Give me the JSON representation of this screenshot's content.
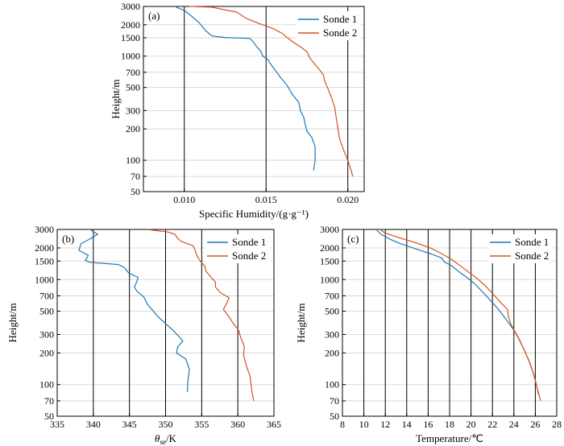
{
  "chart_data": [
    {
      "type": "line",
      "panel_label": "(a)",
      "xlabel": "Specific Humidity/(g·g⁻¹)",
      "ylabel": "Height/m",
      "xlim": [
        0.0075,
        0.021
      ],
      "ylim": [
        50,
        3000
      ],
      "yscale": "log",
      "xticks": [
        0.01,
        0.015,
        0.02
      ],
      "xtick_labels": [
        "0.010",
        "0.015",
        "0.020"
      ],
      "yticks": [
        50,
        70,
        100,
        200,
        300,
        500,
        700,
        1000,
        1500,
        2000,
        3000
      ],
      "vlines": [
        0.01,
        0.015,
        0.02
      ],
      "legend_position": "top-right",
      "series": [
        {
          "name": "Sonde 1",
          "color": "#1f77b4",
          "points": [
            [
              0.0179,
              80
            ],
            [
              0.018,
              100
            ],
            [
              0.018,
              135
            ],
            [
              0.0178,
              165
            ],
            [
              0.0175,
              190
            ],
            [
              0.0174,
              220
            ],
            [
              0.0173,
              260
            ],
            [
              0.0171,
              300
            ],
            [
              0.017,
              360
            ],
            [
              0.0166,
              430
            ],
            [
              0.0163,
              520
            ],
            [
              0.0159,
              620
            ],
            [
              0.0156,
              720
            ],
            [
              0.0153,
              830
            ],
            [
              0.0151,
              930
            ],
            [
              0.0148,
              1000
            ],
            [
              0.0147,
              1100
            ],
            [
              0.0144,
              1250
            ],
            [
              0.0142,
              1380
            ],
            [
              0.014,
              1480
            ],
            [
              0.0125,
              1510
            ],
            [
              0.0117,
              1560
            ],
            [
              0.0113,
              1760
            ],
            [
              0.0109,
              2100
            ],
            [
              0.0104,
              2450
            ],
            [
              0.01,
              2750
            ],
            [
              0.0095,
              2950
            ]
          ]
        },
        {
          "name": "Sonde 2",
          "color": "#d2541e",
          "points": [
            [
              0.0203,
              70
            ],
            [
              0.0202,
              80
            ],
            [
              0.02,
              100
            ],
            [
              0.0197,
              130
            ],
            [
              0.0195,
              160
            ],
            [
              0.0194,
              200
            ],
            [
              0.0193,
              250
            ],
            [
              0.0192,
              320
            ],
            [
              0.019,
              400
            ],
            [
              0.0188,
              480
            ],
            [
              0.0186,
              570
            ],
            [
              0.0185,
              660
            ],
            [
              0.0183,
              730
            ],
            [
              0.018,
              830
            ],
            [
              0.0177,
              950
            ],
            [
              0.0175,
              1100
            ],
            [
              0.0172,
              1200
            ],
            [
              0.0167,
              1350
            ],
            [
              0.0163,
              1500
            ],
            [
              0.016,
              1650
            ],
            [
              0.0154,
              1850
            ],
            [
              0.0146,
              2050
            ],
            [
              0.0138,
              2300
            ],
            [
              0.0132,
              2650
            ],
            [
              0.0124,
              2800
            ],
            [
              0.0117,
              2950
            ],
            [
              0.0103,
              3000
            ]
          ]
        }
      ]
    },
    {
      "type": "line",
      "panel_label": "(b)",
      "xlabel_main": "θ",
      "xlabel_sub": "se",
      "xlabel_unit": "/K",
      "ylabel": "Height/m",
      "xlim": [
        335,
        365
      ],
      "ylim": [
        50,
        3000
      ],
      "yscale": "log",
      "xticks": [
        335,
        340,
        345,
        350,
        355,
        360,
        365
      ],
      "xtick_labels": [
        "335",
        "340",
        "345",
        "350",
        "355",
        "360",
        "365"
      ],
      "yticks": [
        50,
        70,
        100,
        200,
        300,
        500,
        700,
        1000,
        1500,
        2000,
        3000
      ],
      "vlines": [
        340,
        345,
        350,
        355,
        360
      ],
      "legend_position": "top-right",
      "series": [
        {
          "name": "Sonde 1",
          "color": "#1f77b4",
          "points": [
            [
              353.0,
              85
            ],
            [
              353.1,
              110
            ],
            [
              353.3,
              140
            ],
            [
              352.8,
              175
            ],
            [
              351.5,
              200
            ],
            [
              351.7,
              230
            ],
            [
              352.4,
              260
            ],
            [
              351.8,
              290
            ],
            [
              351.0,
              330
            ],
            [
              350.0,
              380
            ],
            [
              349.0,
              440
            ],
            [
              348.3,
              500
            ],
            [
              347.5,
              580
            ],
            [
              347.0,
              680
            ],
            [
              346.0,
              780
            ],
            [
              345.7,
              850
            ],
            [
              346.0,
              950
            ],
            [
              346.2,
              1050
            ],
            [
              344.9,
              1150
            ],
            [
              344.3,
              1300
            ],
            [
              343.5,
              1390
            ],
            [
              339.5,
              1460
            ],
            [
              338.9,
              1530
            ],
            [
              339.3,
              1700
            ],
            [
              338.0,
              1900
            ],
            [
              338.3,
              2200
            ],
            [
              339.6,
              2450
            ],
            [
              340.6,
              2700
            ],
            [
              339.7,
              2950
            ]
          ]
        },
        {
          "name": "Sonde 2",
          "color": "#d2541e",
          "points": [
            [
              362.2,
              70
            ],
            [
              361.9,
              90
            ],
            [
              361.7,
              120
            ],
            [
              361.2,
              150
            ],
            [
              360.8,
              190
            ],
            [
              360.9,
              230
            ],
            [
              360.4,
              280
            ],
            [
              360.1,
              330
            ],
            [
              359.4,
              380
            ],
            [
              358.7,
              450
            ],
            [
              358.0,
              520
            ],
            [
              358.5,
              600
            ],
            [
              358.8,
              670
            ],
            [
              357.6,
              750
            ],
            [
              356.9,
              850
            ],
            [
              356.9,
              950
            ],
            [
              356.3,
              1050
            ],
            [
              355.6,
              1200
            ],
            [
              355.4,
              1350
            ],
            [
              354.8,
              1500
            ],
            [
              354.3,
              1700
            ],
            [
              354.1,
              1900
            ],
            [
              353.8,
              2100
            ],
            [
              352.2,
              2300
            ],
            [
              351.6,
              2500
            ],
            [
              351.3,
              2700
            ],
            [
              350.2,
              2850
            ],
            [
              347.7,
              2980
            ]
          ]
        }
      ]
    },
    {
      "type": "line",
      "panel_label": "(c)",
      "xlabel": "Temperature/℃",
      "ylabel": "Height/m",
      "xlim": [
        8,
        28
      ],
      "ylim": [
        50,
        3000
      ],
      "yscale": "log",
      "xticks": [
        8,
        10,
        12,
        14,
        16,
        18,
        20,
        22,
        24,
        26,
        28
      ],
      "xtick_labels": [
        "8",
        "10",
        "12",
        "14",
        "16",
        "18",
        "20",
        "22",
        "24",
        "26",
        "28"
      ],
      "yticks": [
        50,
        70,
        100,
        200,
        300,
        500,
        700,
        1000,
        1500,
        2000,
        3000
      ],
      "vlines": [
        10,
        12,
        14,
        16,
        18,
        20,
        22,
        24,
        26
      ],
      "legend_position": "top-right",
      "series": [
        {
          "name": "Sonde 1",
          "color": "#1f77b4",
          "points": [
            [
              26.3,
              80
            ],
            [
              26.1,
              100
            ],
            [
              25.8,
              130
            ],
            [
              25.4,
              170
            ],
            [
              24.9,
              220
            ],
            [
              24.4,
              280
            ],
            [
              24.0,
              330
            ],
            [
              23.4,
              400
            ],
            [
              22.7,
              500
            ],
            [
              21.9,
              620
            ],
            [
              21.1,
              760
            ],
            [
              20.3,
              920
            ],
            [
              19.6,
              1050
            ],
            [
              18.9,
              1180
            ],
            [
              18.2,
              1350
            ],
            [
              17.5,
              1470
            ],
            [
              17.3,
              1600
            ],
            [
              16.3,
              1750
            ],
            [
              14.9,
              1950
            ],
            [
              13.4,
              2200
            ],
            [
              12.5,
              2400
            ],
            [
              11.6,
              2700
            ],
            [
              11.2,
              2950
            ]
          ]
        },
        {
          "name": "Sonde 2",
          "color": "#d2541e",
          "points": [
            [
              26.5,
              70
            ],
            [
              26.2,
              90
            ],
            [
              25.9,
              120
            ],
            [
              25.5,
              160
            ],
            [
              25.0,
              210
            ],
            [
              24.5,
              270
            ],
            [
              24.1,
              320
            ],
            [
              23.7,
              380
            ],
            [
              23.5,
              440
            ],
            [
              23.4,
              520
            ],
            [
              22.8,
              600
            ],
            [
              22.1,
              720
            ],
            [
              21.4,
              860
            ],
            [
              20.7,
              1000
            ],
            [
              19.9,
              1150
            ],
            [
              19.0,
              1350
            ],
            [
              18.2,
              1550
            ],
            [
              17.3,
              1750
            ],
            [
              16.2,
              2000
            ],
            [
              14.8,
              2250
            ],
            [
              13.3,
              2500
            ],
            [
              11.9,
              2800
            ],
            [
              11.6,
              2950
            ]
          ]
        }
      ]
    }
  ]
}
